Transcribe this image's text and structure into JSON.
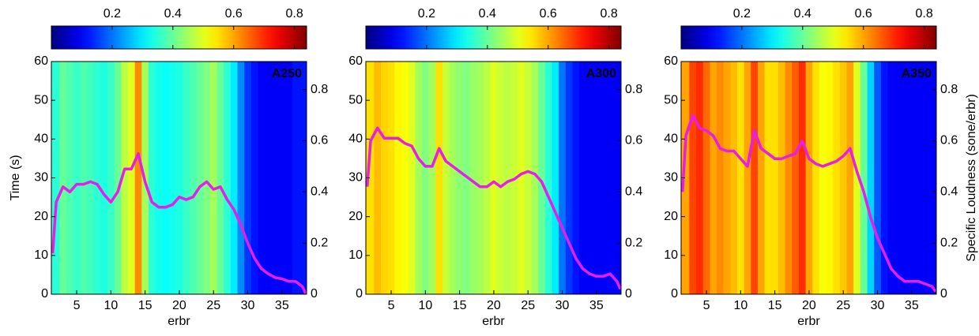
{
  "chart_data": [
    {
      "type": "heatmap",
      "title": "A250",
      "xlabel": "erbr",
      "ylabel": "Time (s)",
      "colormap": "jet",
      "clim": [
        0,
        0.84
      ],
      "cticks": [
        0.2,
        0.4,
        0.6,
        0.8
      ],
      "xlim": [
        1.3,
        38.6
      ],
      "xticks": [
        5,
        10,
        15,
        20,
        25,
        30,
        35
      ],
      "ylim": [
        0,
        60
      ],
      "yticks": [
        0,
        10,
        20,
        30,
        40,
        50,
        60
      ],
      "y2lim": [
        0,
        0.91
      ],
      "y2ticks": [
        0,
        0.2,
        0.4,
        0.6,
        0.8
      ],
      "heatmap": {
        "x": [
          2,
          3,
          4,
          5,
          6,
          7,
          8,
          9,
          10,
          11,
          12,
          13,
          14,
          15,
          16,
          17,
          18,
          19,
          20,
          21,
          22,
          23,
          24,
          25,
          26,
          27,
          28,
          29,
          30,
          31,
          32,
          33,
          34,
          35,
          36,
          37,
          38
        ],
        "values": [
          0.35,
          0.4,
          0.38,
          0.36,
          0.38,
          0.37,
          0.35,
          0.34,
          0.36,
          0.4,
          0.47,
          0.5,
          0.62,
          0.45,
          0.35,
          0.33,
          0.32,
          0.33,
          0.34,
          0.36,
          0.38,
          0.4,
          0.42,
          0.45,
          0.4,
          0.35,
          0.3,
          0.22,
          0.15,
          0.12,
          0.1,
          0.1,
          0.1,
          0.1,
          0.1,
          0.12,
          0.12
        ]
      },
      "line": {
        "color": "#e81ee8",
        "axis": "y2",
        "x": [
          1.5,
          2,
          3,
          4,
          5,
          6,
          7,
          8,
          9,
          10,
          11,
          12,
          13,
          14,
          15,
          16,
          17,
          18,
          19,
          20,
          21,
          22,
          23,
          24,
          25,
          26,
          27,
          28,
          29,
          30,
          31,
          32,
          33,
          34,
          35,
          36,
          37,
          38,
          38.5
        ],
        "values": [
          0.16,
          0.36,
          0.42,
          0.4,
          0.43,
          0.43,
          0.44,
          0.43,
          0.39,
          0.36,
          0.4,
          0.49,
          0.49,
          0.55,
          0.44,
          0.36,
          0.34,
          0.34,
          0.35,
          0.38,
          0.37,
          0.38,
          0.42,
          0.44,
          0.41,
          0.42,
          0.37,
          0.33,
          0.27,
          0.2,
          0.14,
          0.1,
          0.08,
          0.065,
          0.06,
          0.05,
          0.05,
          0.03,
          0
        ]
      }
    },
    {
      "type": "heatmap",
      "title": "A300",
      "xlabel": "erbr",
      "colormap": "jet",
      "clim": [
        0,
        0.84
      ],
      "cticks": [
        0.2,
        0.4,
        0.6,
        0.8
      ],
      "xlim": [
        1.3,
        38.6
      ],
      "xticks": [
        5,
        10,
        15,
        20,
        25,
        30,
        35
      ],
      "ylim": [
        0,
        60
      ],
      "yticks": [
        0,
        10,
        20,
        30,
        40,
        50,
        60
      ],
      "y2lim": [
        0,
        0.91
      ],
      "y2ticks": [
        0,
        0.2,
        0.4,
        0.6,
        0.8
      ],
      "heatmap": {
        "x": [
          2,
          3,
          4,
          5,
          6,
          7,
          8,
          9,
          10,
          11,
          12,
          13,
          14,
          15,
          16,
          17,
          18,
          19,
          20,
          21,
          22,
          23,
          24,
          25,
          26,
          27,
          28,
          29,
          30,
          31,
          32,
          33,
          34,
          35,
          36,
          37,
          38
        ],
        "values": [
          0.55,
          0.58,
          0.56,
          0.55,
          0.53,
          0.52,
          0.5,
          0.45,
          0.42,
          0.45,
          0.55,
          0.48,
          0.45,
          0.43,
          0.42,
          0.44,
          0.45,
          0.47,
          0.5,
          0.48,
          0.47,
          0.48,
          0.5,
          0.48,
          0.45,
          0.4,
          0.35,
          0.3,
          0.2,
          0.15,
          0.12,
          0.1,
          0.1,
          0.1,
          0.1,
          0.1,
          0.1
        ]
      },
      "line": {
        "color": "#e81ee8",
        "axis": "y2",
        "x": [
          1.5,
          2,
          3,
          4,
          5,
          6,
          7,
          8,
          9,
          10,
          11,
          12,
          13,
          14,
          15,
          16,
          17,
          18,
          19,
          20,
          21,
          22,
          23,
          24,
          25,
          26,
          27,
          28,
          29,
          30,
          31,
          32,
          33,
          34,
          35,
          36,
          37,
          38,
          38.5
        ],
        "values": [
          0.42,
          0.6,
          0.65,
          0.61,
          0.61,
          0.61,
          0.59,
          0.58,
          0.53,
          0.5,
          0.5,
          0.57,
          0.52,
          0.5,
          0.48,
          0.46,
          0.44,
          0.42,
          0.42,
          0.44,
          0.42,
          0.44,
          0.45,
          0.47,
          0.48,
          0.47,
          0.44,
          0.38,
          0.32,
          0.26,
          0.2,
          0.14,
          0.1,
          0.08,
          0.07,
          0.07,
          0.08,
          0.05,
          0.02
        ]
      }
    },
    {
      "type": "heatmap",
      "title": "A350",
      "xlabel": "erbr",
      "y2label": "Specific Loudness (sone/erbr)",
      "colormap": "jet",
      "clim": [
        0,
        0.84
      ],
      "cticks": [
        0.2,
        0.4,
        0.6,
        0.8
      ],
      "xlim": [
        1.3,
        38.6
      ],
      "xticks": [
        5,
        10,
        15,
        20,
        25,
        30,
        35
      ],
      "ylim": [
        0,
        60
      ],
      "yticks": [
        0,
        10,
        20,
        30,
        40,
        50,
        60
      ],
      "y2lim": [
        0,
        0.91
      ],
      "y2ticks": [
        0,
        0.2,
        0.4,
        0.6,
        0.8
      ],
      "heatmap": {
        "x": [
          2,
          3,
          4,
          5,
          6,
          7,
          8,
          9,
          10,
          11,
          12,
          13,
          14,
          15,
          16,
          17,
          18,
          19,
          20,
          21,
          22,
          23,
          24,
          25,
          26,
          27,
          28,
          29,
          30,
          31,
          32,
          33,
          34,
          35,
          36,
          37,
          38
        ],
        "values": [
          0.6,
          0.68,
          0.7,
          0.65,
          0.6,
          0.62,
          0.6,
          0.58,
          0.55,
          0.6,
          0.68,
          0.6,
          0.55,
          0.55,
          0.58,
          0.62,
          0.66,
          0.7,
          0.6,
          0.55,
          0.52,
          0.53,
          0.55,
          0.57,
          0.6,
          0.5,
          0.4,
          0.28,
          0.18,
          0.12,
          0.1,
          0.1,
          0.1,
          0.1,
          0.1,
          0.1,
          0.1
        ]
      },
      "line": {
        "color": "#e81ee8",
        "axis": "y2",
        "x": [
          1.5,
          2,
          3,
          4,
          5,
          6,
          7,
          8,
          9,
          10,
          11,
          12,
          13,
          14,
          15,
          16,
          17,
          18,
          19,
          20,
          21,
          22,
          23,
          24,
          25,
          26,
          27,
          28,
          29,
          30,
          31,
          32,
          33,
          34,
          35,
          36,
          37,
          38,
          38.5
        ],
        "values": [
          0.4,
          0.62,
          0.7,
          0.65,
          0.64,
          0.62,
          0.57,
          0.56,
          0.56,
          0.53,
          0.5,
          0.64,
          0.57,
          0.55,
          0.53,
          0.53,
          0.54,
          0.55,
          0.6,
          0.53,
          0.51,
          0.5,
          0.51,
          0.52,
          0.54,
          0.57,
          0.48,
          0.4,
          0.3,
          0.22,
          0.16,
          0.1,
          0.07,
          0.05,
          0.05,
          0.05,
          0.04,
          0.03,
          0.01
        ]
      }
    }
  ]
}
